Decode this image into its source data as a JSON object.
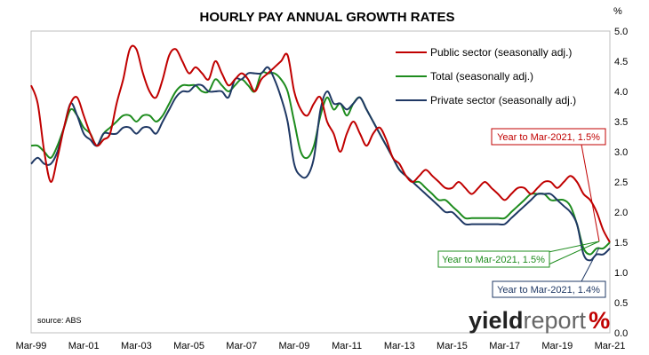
{
  "chart_data": {
    "type": "line",
    "title": "HOURLY PAY ANNUAL GROWTH RATES",
    "y_unit": "%",
    "ylim": [
      0.0,
      5.0
    ],
    "y_ticks": [
      "0.0",
      "0.5",
      "1.0",
      "1.5",
      "2.0",
      "2.5",
      "3.0",
      "3.5",
      "4.0",
      "4.5",
      "5.0"
    ],
    "x_range": [
      1999.0,
      2021.0
    ],
    "x_ticks": [
      {
        "x": 1999,
        "label": "Mar-99"
      },
      {
        "x": 2001,
        "label": "Mar-01"
      },
      {
        "x": 2003,
        "label": "Mar-03"
      },
      {
        "x": 2005,
        "label": "Mar-05"
      },
      {
        "x": 2007,
        "label": "Mar-07"
      },
      {
        "x": 2009,
        "label": "Mar-09"
      },
      {
        "x": 2011,
        "label": "Mar-11"
      },
      {
        "x": 2013,
        "label": "Mar-13"
      },
      {
        "x": 2015,
        "label": "Mar-15"
      },
      {
        "x": 2017,
        "label": "Mar-17"
      },
      {
        "x": 2019,
        "label": "Mar-19"
      },
      {
        "x": 2021,
        "label": "Mar-21"
      }
    ],
    "grid": false,
    "legend_position": "top-right",
    "series": [
      {
        "name": "Public sector (seasonally adj.)",
        "color": "#c00000",
        "x": [
          1999,
          1999.25,
          1999.5,
          1999.75,
          2000,
          2000.25,
          2000.5,
          2000.75,
          2001,
          2001.25,
          2001.5,
          2001.75,
          2002,
          2002.25,
          2002.5,
          2002.75,
          2003,
          2003.25,
          2003.5,
          2003.75,
          2004,
          2004.25,
          2004.5,
          2004.75,
          2005,
          2005.25,
          2005.5,
          2005.75,
          2006,
          2006.25,
          2006.5,
          2006.75,
          2007,
          2007.25,
          2007.5,
          2007.75,
          2008,
          2008.25,
          2008.5,
          2008.75,
          2009,
          2009.25,
          2009.5,
          2009.75,
          2010,
          2010.25,
          2010.5,
          2010.75,
          2011,
          2011.25,
          2011.5,
          2011.75,
          2012,
          2012.25,
          2012.5,
          2012.75,
          2013,
          2013.25,
          2013.5,
          2013.75,
          2014,
          2014.25,
          2014.5,
          2014.75,
          2015,
          2015.25,
          2015.5,
          2015.75,
          2016,
          2016.25,
          2016.5,
          2016.75,
          2017,
          2017.25,
          2017.5,
          2017.75,
          2018,
          2018.25,
          2018.5,
          2018.75,
          2019,
          2019.25,
          2019.5,
          2019.75,
          2020,
          2020.25,
          2020.5,
          2020.75,
          2021
        ],
        "y": [
          4.1,
          3.8,
          3.0,
          2.5,
          2.9,
          3.4,
          3.8,
          3.9,
          3.6,
          3.3,
          3.1,
          3.2,
          3.3,
          3.8,
          4.2,
          4.7,
          4.7,
          4.3,
          4.0,
          3.9,
          4.2,
          4.6,
          4.7,
          4.5,
          4.3,
          4.4,
          4.3,
          4.2,
          4.5,
          4.3,
          4.1,
          4.2,
          4.3,
          4.2,
          4.0,
          4.2,
          4.3,
          4.4,
          4.5,
          4.6,
          4.0,
          3.7,
          3.6,
          3.8,
          3.9,
          3.5,
          3.3,
          3.0,
          3.3,
          3.5,
          3.3,
          3.1,
          3.3,
          3.4,
          3.2,
          2.9,
          2.8,
          2.6,
          2.5,
          2.6,
          2.7,
          2.6,
          2.5,
          2.4,
          2.4,
          2.5,
          2.4,
          2.3,
          2.4,
          2.5,
          2.4,
          2.3,
          2.2,
          2.3,
          2.4,
          2.4,
          2.3,
          2.4,
          2.5,
          2.5,
          2.4,
          2.5,
          2.6,
          2.5,
          2.3,
          2.2,
          2.0,
          1.7,
          1.5
        ]
      },
      {
        "name": "Total (seasonally adj.)",
        "color": "#1e8c1e",
        "x": [
          1999,
          1999.25,
          1999.5,
          1999.75,
          2000,
          2000.25,
          2000.5,
          2000.75,
          2001,
          2001.25,
          2001.5,
          2001.75,
          2002,
          2002.25,
          2002.5,
          2002.75,
          2003,
          2003.25,
          2003.5,
          2003.75,
          2004,
          2004.25,
          2004.5,
          2004.75,
          2005,
          2005.25,
          2005.5,
          2005.75,
          2006,
          2006.25,
          2006.5,
          2006.75,
          2007,
          2007.25,
          2007.5,
          2007.75,
          2008,
          2008.25,
          2008.5,
          2008.75,
          2009,
          2009.25,
          2009.5,
          2009.75,
          2010,
          2010.25,
          2010.5,
          2010.75,
          2011,
          2011.25,
          2011.5,
          2011.75,
          2012,
          2012.25,
          2012.5,
          2012.75,
          2013,
          2013.25,
          2013.5,
          2013.75,
          2014,
          2014.25,
          2014.5,
          2014.75,
          2015,
          2015.25,
          2015.5,
          2015.75,
          2016,
          2016.25,
          2016.5,
          2016.75,
          2017,
          2017.25,
          2017.5,
          2017.75,
          2018,
          2018.25,
          2018.5,
          2018.75,
          2019,
          2019.25,
          2019.5,
          2019.75,
          2020,
          2020.25,
          2020.5,
          2020.75,
          2021
        ],
        "y": [
          3.1,
          3.1,
          3.0,
          2.9,
          3.1,
          3.4,
          3.7,
          3.6,
          3.4,
          3.3,
          3.1,
          3.3,
          3.4,
          3.5,
          3.6,
          3.6,
          3.5,
          3.6,
          3.6,
          3.5,
          3.6,
          3.8,
          4.0,
          4.1,
          4.1,
          4.1,
          4.0,
          4.0,
          4.2,
          4.1,
          4.0,
          4.1,
          4.2,
          4.1,
          4.0,
          4.3,
          4.3,
          4.3,
          4.2,
          4.0,
          3.5,
          3.0,
          2.9,
          3.1,
          3.6,
          3.9,
          3.7,
          3.8,
          3.6,
          3.8,
          3.9,
          3.7,
          3.5,
          3.3,
          3.1,
          2.9,
          2.7,
          2.6,
          2.5,
          2.5,
          2.4,
          2.3,
          2.2,
          2.2,
          2.1,
          2.0,
          1.9,
          1.9,
          1.9,
          1.9,
          1.9,
          1.9,
          1.9,
          2.0,
          2.1,
          2.2,
          2.3,
          2.3,
          2.3,
          2.2,
          2.2,
          2.2,
          2.1,
          1.8,
          1.4,
          1.3,
          1.4,
          1.4,
          1.5
        ]
      },
      {
        "name": "Private sector (seasonally adj.)",
        "color": "#1f3864",
        "x": [
          1999,
          1999.25,
          1999.5,
          1999.75,
          2000,
          2000.25,
          2000.5,
          2000.75,
          2001,
          2001.25,
          2001.5,
          2001.75,
          2002,
          2002.25,
          2002.5,
          2002.75,
          2003,
          2003.25,
          2003.5,
          2003.75,
          2004,
          2004.25,
          2004.5,
          2004.75,
          2005,
          2005.25,
          2005.5,
          2005.75,
          2006,
          2006.25,
          2006.5,
          2006.75,
          2007,
          2007.25,
          2007.5,
          2007.75,
          2008,
          2008.25,
          2008.5,
          2008.75,
          2009,
          2009.25,
          2009.5,
          2009.75,
          2010,
          2010.25,
          2010.5,
          2010.75,
          2011,
          2011.25,
          2011.5,
          2011.75,
          2012,
          2012.25,
          2012.5,
          2012.75,
          2013,
          2013.25,
          2013.5,
          2013.75,
          2014,
          2014.25,
          2014.5,
          2014.75,
          2015,
          2015.25,
          2015.5,
          2015.75,
          2016,
          2016.25,
          2016.5,
          2016.75,
          2017,
          2017.25,
          2017.5,
          2017.75,
          2018,
          2018.25,
          2018.5,
          2018.75,
          2019,
          2019.25,
          2019.5,
          2019.75,
          2020,
          2020.25,
          2020.5,
          2020.75,
          2021
        ],
        "y": [
          2.8,
          2.9,
          2.8,
          2.8,
          3.0,
          3.4,
          3.8,
          3.6,
          3.3,
          3.2,
          3.1,
          3.3,
          3.3,
          3.3,
          3.4,
          3.4,
          3.3,
          3.4,
          3.4,
          3.3,
          3.5,
          3.7,
          3.9,
          4.0,
          4.0,
          4.1,
          4.1,
          4.0,
          4.0,
          4.0,
          3.9,
          4.2,
          4.2,
          4.3,
          4.3,
          4.3,
          4.4,
          4.2,
          3.9,
          3.5,
          2.8,
          2.6,
          2.6,
          2.9,
          3.7,
          4.0,
          3.8,
          3.8,
          3.7,
          3.8,
          3.9,
          3.7,
          3.5,
          3.3,
          3.1,
          2.9,
          2.7,
          2.6,
          2.5,
          2.4,
          2.3,
          2.2,
          2.1,
          2.0,
          2.0,
          1.9,
          1.8,
          1.8,
          1.8,
          1.8,
          1.8,
          1.8,
          1.8,
          1.9,
          2.0,
          2.1,
          2.2,
          2.3,
          2.3,
          2.3,
          2.2,
          2.1,
          2.0,
          1.8,
          1.3,
          1.2,
          1.3,
          1.3,
          1.4
        ]
      }
    ],
    "annotations": [
      {
        "text": "Year to Mar-2021, 1.5%",
        "series": "Public sector (seasonally adj.)",
        "color": "#c00000"
      },
      {
        "text": "Year to Mar-2021, 1.5%",
        "series": "Total (seasonally adj.)",
        "color": "#1e8c1e"
      },
      {
        "text": "Year to Mar-2021, 1.4%",
        "series": "Private sector (seasonally adj.)",
        "color": "#1f3864"
      }
    ],
    "source": "source: ABS"
  },
  "logo": {
    "part1": "yield",
    "part2": "report",
    "part3": "%"
  }
}
